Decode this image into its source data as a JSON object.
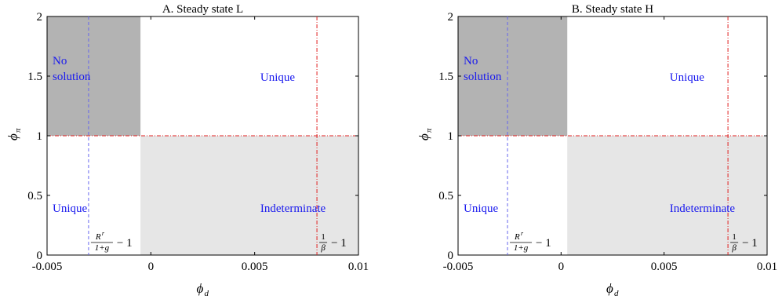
{
  "chart_data": [
    {
      "type": "region",
      "title": "A. Steady state L",
      "xlabel_base": "ϕ",
      "xlabel_sub": "d",
      "ylabel_base": "ϕ",
      "ylabel_sub": "π",
      "xlim": [
        -0.005,
        0.01
      ],
      "ylim": [
        0,
        2
      ],
      "xticks": [
        "-0.005",
        "0",
        "0.005",
        "0.01"
      ],
      "xtick_values": [
        -0.005,
        0,
        0.005,
        0.01
      ],
      "yticks": [
        "0",
        "0.5",
        "1",
        "1.5",
        "2"
      ],
      "ytick_values": [
        0,
        0.5,
        1,
        1.5,
        2
      ],
      "boundary_x": -0.0005,
      "boundary_y": 1,
      "blue_line_x": -0.003,
      "red_line_x": 0.008,
      "colors": {
        "dark_region": "#b3b3b3",
        "light_region": "#e6e6e6",
        "blue_line": "#6666ee",
        "red_line": "#e02020",
        "label": "#1a1aee"
      },
      "regions": [
        {
          "name": "no-solution",
          "label_lines": [
            "No",
            "solution"
          ],
          "x": [
            -0.005,
            -0.0005
          ],
          "y": [
            1,
            2
          ],
          "shade": "dark"
        },
        {
          "name": "unique-top",
          "label_lines": [
            "Unique"
          ],
          "x": [
            -0.0005,
            0.01
          ],
          "y": [
            1,
            2
          ],
          "shade": "none"
        },
        {
          "name": "unique-bottom",
          "label_lines": [
            "Unique"
          ],
          "x": [
            -0.005,
            -0.0005
          ],
          "y": [
            0,
            1
          ],
          "shade": "none"
        },
        {
          "name": "indeterminate",
          "label_lines": [
            "Indeterminate"
          ],
          "x": [
            -0.0005,
            0.01
          ],
          "y": [
            0,
            1
          ],
          "shade": "light"
        }
      ],
      "annotations": {
        "blue": {
          "num_base": "R",
          "num_sup": "r",
          "den": "1+g",
          "suffix": "− 1"
        },
        "red": {
          "num": "1",
          "den": "β",
          "suffix": "− 1"
        }
      }
    },
    {
      "type": "region",
      "title": "B. Steady state H",
      "xlabel_base": "ϕ",
      "xlabel_sub": "d",
      "ylabel_base": "ϕ",
      "ylabel_sub": "π",
      "xlim": [
        -0.005,
        0.01
      ],
      "ylim": [
        0,
        2
      ],
      "xticks": [
        "-0.005",
        "0",
        "0.005",
        "0.01"
      ],
      "xtick_values": [
        -0.005,
        0,
        0.005,
        0.01
      ],
      "yticks": [
        "0",
        "0.5",
        "1",
        "1.5",
        "2"
      ],
      "ytick_values": [
        0,
        0.5,
        1,
        1.5,
        2
      ],
      "boundary_x": 0.0003,
      "boundary_y": 1,
      "blue_line_x": -0.0026,
      "red_line_x": 0.0081,
      "colors": {
        "dark_region": "#b3b3b3",
        "light_region": "#e6e6e6",
        "blue_line": "#6666ee",
        "red_line": "#e02020",
        "label": "#1a1aee"
      },
      "regions": [
        {
          "name": "no-solution",
          "label_lines": [
            "No",
            "solution"
          ],
          "x": [
            -0.005,
            0.0003
          ],
          "y": [
            1,
            2
          ],
          "shade": "dark"
        },
        {
          "name": "unique-top",
          "label_lines": [
            "Unique"
          ],
          "x": [
            0.0003,
            0.01
          ],
          "y": [
            1,
            2
          ],
          "shade": "none"
        },
        {
          "name": "unique-bottom",
          "label_lines": [
            "Unique"
          ],
          "x": [
            -0.005,
            0.0003
          ],
          "y": [
            0,
            1
          ],
          "shade": "none"
        },
        {
          "name": "indeterminate",
          "label_lines": [
            "Indeterminate"
          ],
          "x": [
            0.0003,
            0.01
          ],
          "y": [
            0,
            1
          ],
          "shade": "light"
        }
      ],
      "annotations": {
        "blue": {
          "num_base": "R",
          "num_sup": "r",
          "den": "1+g",
          "suffix": "− 1"
        },
        "red": {
          "num": "1",
          "den": "β",
          "suffix": "− 1"
        }
      }
    }
  ]
}
